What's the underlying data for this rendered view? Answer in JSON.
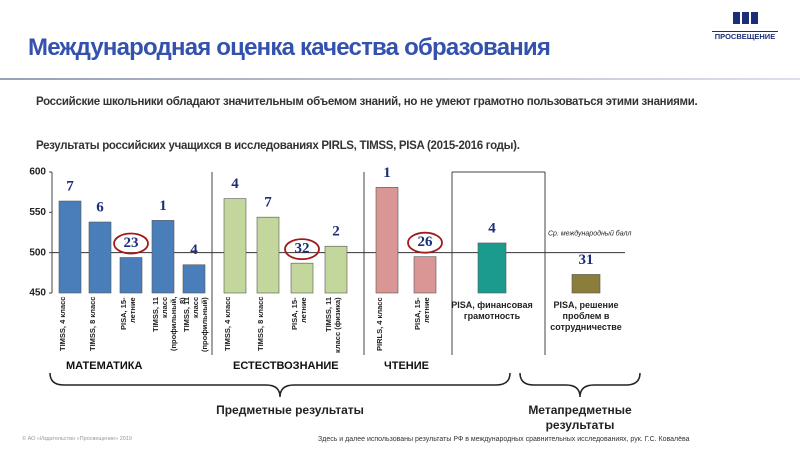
{
  "logo": "ПРОСВЕЩЕНИЕ",
  "header": {
    "title": "Международная оценка качества образования",
    "subtitle": "Российские школьники обладают значительным объемом знаний, но не умеют грамотно пользоваться этими знаниями."
  },
  "chart_data": {
    "type": "bar",
    "title": "Результаты российских учащихся в исследованиях PIRLS, TIMSS, PISA (2015-2016 годы).",
    "ylim": [
      450,
      600
    ],
    "yticks": [
      450,
      500,
      550,
      600
    ],
    "reference": {
      "value": 500,
      "label": "Ср. международный балл"
    },
    "panels": [
      {
        "label": "МАТЕМАТИКА",
        "color": "#4a7ebb",
        "categories": [
          "TIMSS, 4 класс",
          "TIMSS, 8 класс",
          "PISA, 15-летние",
          "TIMSS, 11 класс (профильный, 8)",
          "TIMSS, 11 класс (профильный)"
        ],
        "values": [
          564,
          538,
          494,
          540,
          485
        ],
        "ranks": [
          7,
          6,
          23,
          1,
          4
        ],
        "circled": [
          false,
          false,
          true,
          false,
          false
        ]
      },
      {
        "label": "ЕСТЕСТВОЗНАНИЕ",
        "color": "#c3d69b",
        "categories": [
          "TIMSS, 4 класс",
          "TIMSS, 8 класс",
          "PISA, 15-летние",
          "TIMSS, 11 класс (физика)"
        ],
        "values": [
          567,
          544,
          487,
          508
        ],
        "ranks": [
          4,
          7,
          32,
          2
        ],
        "circled": [
          false,
          false,
          true,
          false
        ]
      },
      {
        "label": "ЧТЕНИЕ",
        "color": "#d99694",
        "categories": [
          "PIRLS, 4 класс",
          "PISA, 15-летние"
        ],
        "values": [
          581,
          495
        ],
        "ranks": [
          1,
          26
        ],
        "circled": [
          false,
          true
        ]
      },
      {
        "color": "#1a9b8e",
        "categories": [
          "PISA, финансовая грамотность"
        ],
        "values": [
          512
        ],
        "ranks": [
          4
        ],
        "circled": [
          false
        ]
      },
      {
        "color": "#8b7d3a",
        "categories": [
          "PISA, решение проблем в сотрудничестве"
        ],
        "values": [
          473
        ],
        "ranks": [
          31
        ],
        "circled": [
          false
        ]
      }
    ],
    "brackets": [
      {
        "label": "Предметные результаты"
      },
      {
        "label": "Метапредметные результаты"
      }
    ]
  },
  "footer": {
    "copyright": "© АО «Издательство «Просвещение» 2019",
    "source": "Здесь и далее использованы результаты РФ в международных сравнительных исследованиях, рук. Г.С. Ковалёва"
  }
}
